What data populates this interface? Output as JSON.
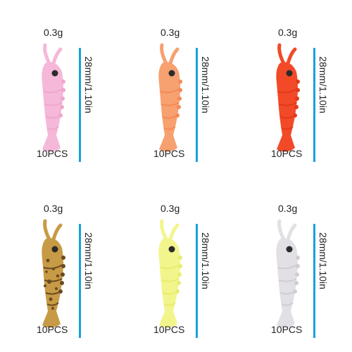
{
  "items": [
    {
      "weight": "0.3g",
      "size": "28mm/1.10in",
      "count": "10PCS",
      "color": "#f5b8d8",
      "spot": "#f0a6cc",
      "eye": "#2b2b2b",
      "speckled": false
    },
    {
      "weight": "0.3g",
      "size": "28mm/1.10in",
      "count": "10PCS",
      "color": "#f7a070",
      "spot": "#f48a55",
      "eye": "#2b2b2b",
      "speckled": false
    },
    {
      "weight": "0.3g",
      "size": "28mm/1.10in",
      "count": "10PCS",
      "color": "#f24a28",
      "spot": "#e13a1a",
      "eye": "#2b2b2b",
      "speckled": false
    },
    {
      "weight": "0.3g",
      "size": "28mm/1.10in",
      "count": "10PCS",
      "color": "#c79a45",
      "spot": "#6a4a22",
      "eye": "#2b2b2b",
      "speckled": true
    },
    {
      "weight": "0.3g",
      "size": "28mm/1.10in",
      "count": "10PCS",
      "color": "#f2f58c",
      "spot": "#e8ec70",
      "eye": "#2b2b2b",
      "speckled": false
    },
    {
      "weight": "0.3g",
      "size": "28mm/1.10in",
      "count": "10PCS",
      "color": "#e2e0e4",
      "spot": "#cfcdd3",
      "eye": "#2b2b2b",
      "speckled": false
    }
  ]
}
